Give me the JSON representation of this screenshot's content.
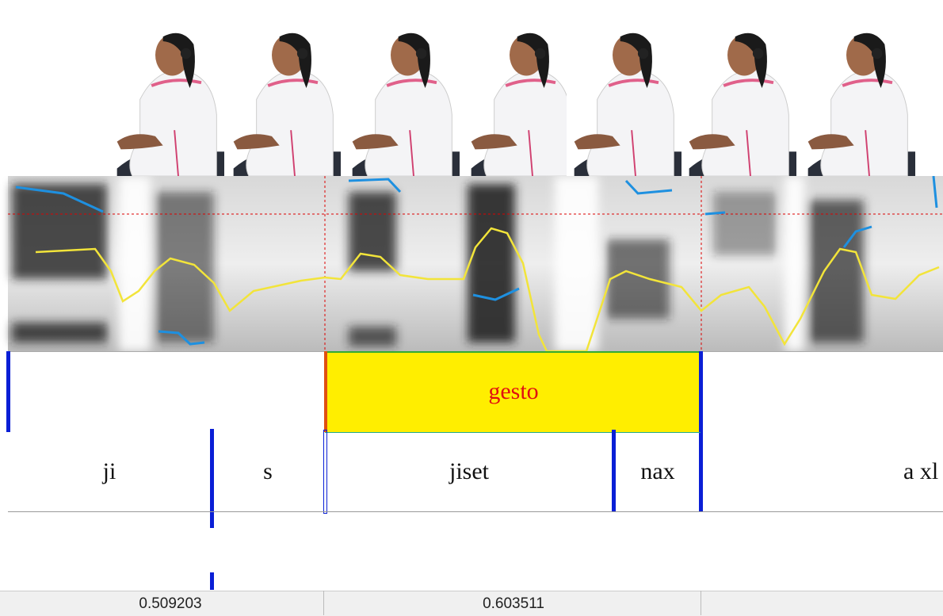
{
  "gesture_tier": {
    "label": "gesto"
  },
  "word_tier": {
    "labels": [
      "ji",
      "s",
      "jiset",
      "nax",
      "a xl"
    ]
  },
  "duration_bar": {
    "values": [
      "0.509203",
      "0.603511"
    ]
  }
}
